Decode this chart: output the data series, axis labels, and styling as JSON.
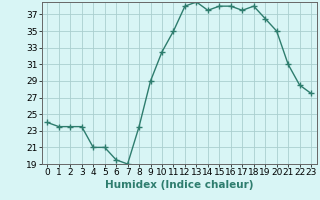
{
  "x": [
    0,
    1,
    2,
    3,
    4,
    5,
    6,
    7,
    8,
    9,
    10,
    11,
    12,
    13,
    14,
    15,
    16,
    17,
    18,
    19,
    20,
    21,
    22,
    23
  ],
  "y": [
    24.0,
    23.5,
    23.5,
    23.5,
    21.0,
    21.0,
    19.5,
    19.0,
    23.5,
    29.0,
    32.5,
    35.0,
    38.0,
    38.5,
    37.5,
    38.0,
    38.0,
    37.5,
    38.0,
    36.5,
    35.0,
    31.0,
    28.5,
    27.5
  ],
  "line_color": "#2e7d6e",
  "marker": "+",
  "marker_size": 4,
  "bg_color": "#d8f5f5",
  "grid_color": "#aacfcf",
  "xlabel": "Humidex (Indice chaleur)",
  "ylim": [
    19,
    38.5
  ],
  "xlim": [
    -0.5,
    23.5
  ],
  "yticks": [
    19,
    21,
    23,
    25,
    27,
    29,
    31,
    33,
    35,
    37
  ],
  "xticks": [
    0,
    1,
    2,
    3,
    4,
    5,
    6,
    7,
    8,
    9,
    10,
    11,
    12,
    13,
    14,
    15,
    16,
    17,
    18,
    19,
    20,
    21,
    22,
    23
  ],
  "xlabel_fontsize": 7.5,
  "tick_fontsize": 6.5,
  "linewidth": 1.0
}
